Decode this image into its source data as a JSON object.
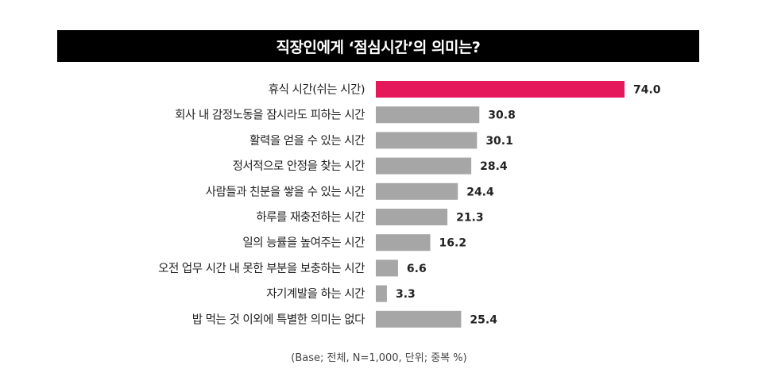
{
  "chart_data": {
    "type": "bar",
    "orientation": "horizontal",
    "title": "직장인에게 ‘점심시간’의 의미는?",
    "categories": [
      "휴식 시간(쉬는 시간)",
      "회사 내 감정노동을 잠시라도 피하는 시간",
      "활력을 얻을 수 있는 시간",
      "정서적으로 안정을 찾는 시간",
      "사람들과 친분을 쌓을 수 있는 시간",
      "하루를 재충전하는 시간",
      "일의 능률을 높여주는 시간",
      "오전 업무 시간 내 못한 부분을 보충하는 시간",
      "자기계발을 하는 시간",
      "밥 먹는 것 이외에 특별한 의미는 없다"
    ],
    "values": [
      74.0,
      30.8,
      30.1,
      28.4,
      24.4,
      21.3,
      16.2,
      6.6,
      3.3,
      25.4
    ],
    "value_labels": [
      "74.0",
      "30.8",
      "30.1",
      "28.4",
      "24.4",
      "21.3",
      "16.2",
      "6.6",
      "3.3",
      "25.4"
    ],
    "xlim": [
      0,
      74
    ],
    "grid": false,
    "legend": "none",
    "colors": {
      "highlight": "#e5185c",
      "default": "#a6a6a6"
    },
    "footnote": "(Base; 전체, N=1,000, 단위; 중복 %)"
  }
}
